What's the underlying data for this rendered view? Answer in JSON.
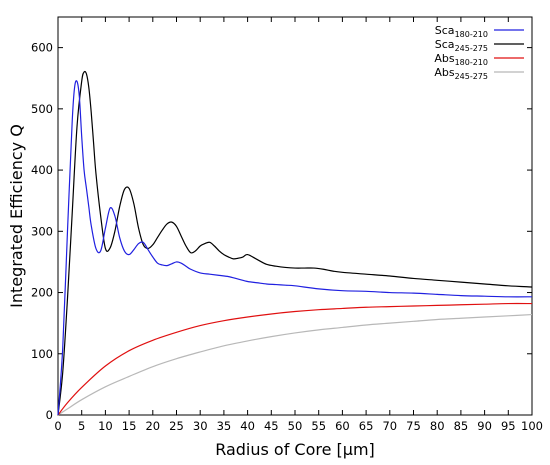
{
  "chart_data": {
    "type": "line",
    "xlabel": "Radius of Core [µm]",
    "ylabel": "Integrated Efficiency Q",
    "xlim": [
      0,
      100
    ],
    "ylim": [
      0,
      650
    ],
    "xticks": [
      0,
      5,
      10,
      15,
      20,
      25,
      30,
      35,
      40,
      45,
      50,
      55,
      60,
      65,
      70,
      75,
      80,
      85,
      90,
      95,
      100
    ],
    "yticks": [
      0,
      100,
      200,
      300,
      400,
      500,
      600
    ],
    "grid": false,
    "legend_position": "top-right",
    "series": [
      {
        "name": "Sca",
        "name_sub": "180-210",
        "color": "#2020e0",
        "x": [
          0,
          1,
          2,
          3,
          3.5,
          4,
          4.5,
          5,
          5.5,
          6,
          6.5,
          7,
          8,
          9,
          10,
          11,
          12,
          13,
          14,
          15,
          16,
          17,
          18,
          19,
          20,
          21,
          22,
          23,
          24,
          25,
          26,
          27,
          28,
          30,
          32,
          34,
          36,
          38,
          40,
          42,
          44,
          46,
          48,
          50,
          55,
          60,
          65,
          70,
          75,
          80,
          85,
          90,
          95,
          100
        ],
        "y": [
          0,
          110,
          300,
          480,
          535,
          545,
          520,
          455,
          400,
          370,
          340,
          310,
          272,
          268,
          305,
          338,
          325,
          290,
          268,
          262,
          270,
          280,
          282,
          270,
          258,
          248,
          245,
          244,
          247,
          250,
          248,
          243,
          238,
          232,
          230,
          228,
          226,
          222,
          218,
          216,
          214,
          213,
          212,
          211,
          206,
          203,
          202,
          200,
          199,
          197,
          195,
          194,
          193,
          193
        ]
      },
      {
        "name": "Sca",
        "name_sub": "245-275",
        "color": "#000000",
        "x": [
          0,
          1,
          2,
          3,
          4,
          5,
          5.5,
          6,
          6.5,
          7,
          7.5,
          8,
          9,
          10,
          11,
          12,
          13,
          14,
          15,
          16,
          17,
          18,
          19,
          20,
          21,
          22,
          23,
          24,
          25,
          26,
          27,
          28,
          29,
          30,
          31,
          32,
          33,
          34,
          35,
          36,
          37,
          38,
          39,
          40,
          42,
          44,
          46,
          48,
          50,
          52,
          54,
          56,
          58,
          60,
          65,
          70,
          75,
          80,
          85,
          90,
          95,
          100
        ],
        "y": [
          0,
          70,
          190,
          330,
          470,
          545,
          560,
          557,
          535,
          495,
          445,
          395,
          325,
          272,
          273,
          300,
          340,
          368,
          370,
          345,
          305,
          278,
          272,
          278,
          290,
          302,
          312,
          315,
          308,
          292,
          276,
          265,
          268,
          276,
          280,
          282,
          276,
          268,
          262,
          258,
          255,
          256,
          258,
          262,
          254,
          246,
          243,
          241,
          240,
          240,
          240,
          238,
          235,
          233,
          230,
          227,
          223,
          220,
          217,
          214,
          211,
          209
        ]
      },
      {
        "name": "Abs",
        "name_sub": "180-210",
        "color": "#e01010",
        "x": [
          0,
          2,
          5,
          10,
          15,
          20,
          25,
          30,
          35,
          40,
          45,
          50,
          55,
          60,
          65,
          70,
          75,
          80,
          85,
          90,
          95,
          100
        ],
        "y": [
          0,
          20,
          45,
          80,
          105,
          122,
          135,
          146,
          154,
          160,
          165,
          169,
          172,
          174,
          176,
          177,
          178,
          179,
          180,
          181,
          182,
          182
        ]
      },
      {
        "name": "Abs",
        "name_sub": "245-275",
        "color": "#b8b8b8",
        "x": [
          0,
          2,
          5,
          10,
          15,
          20,
          25,
          30,
          35,
          40,
          45,
          50,
          55,
          60,
          65,
          70,
          75,
          80,
          85,
          90,
          95,
          100
        ],
        "y": [
          0,
          10,
          25,
          46,
          63,
          79,
          92,
          103,
          113,
          121,
          128,
          134,
          139,
          143,
          147,
          150,
          153,
          156,
          158,
          160,
          162,
          164
        ]
      }
    ]
  }
}
